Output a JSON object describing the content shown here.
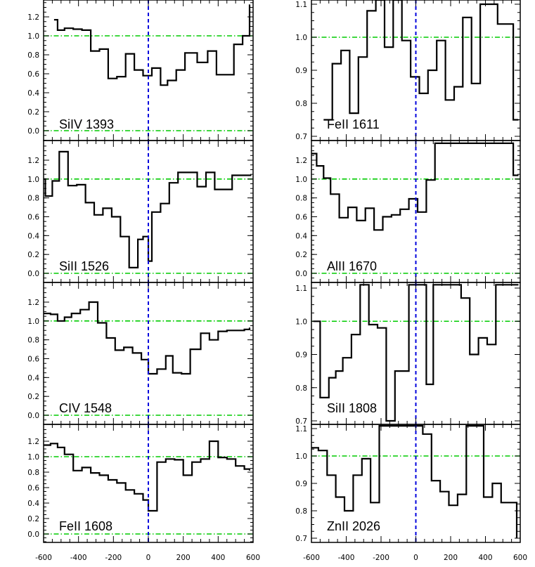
{
  "chart_data": [
    {
      "type": "line",
      "label": "SiIV 1393",
      "ylim": [
        -0.1,
        1.38
      ],
      "yticks": [
        0.0,
        0.2,
        0.4,
        0.6,
        0.8,
        1.0,
        1.2
      ],
      "ytick_labels": [
        "0.0",
        "0.2",
        "0.4",
        "0.6",
        "0.8",
        "1.0",
        "1.2"
      ],
      "x": [
        -540,
        -520,
        -480,
        -430,
        -380,
        -330,
        -280,
        -230,
        -180,
        -130,
        -80,
        -30,
        20,
        70,
        110,
        160,
        210,
        280,
        340,
        390,
        440,
        490,
        540,
        580
      ],
      "y": [
        1.17,
        1.06,
        1.08,
        1.07,
        1.06,
        0.84,
        0.86,
        0.55,
        0.57,
        0.81,
        0.64,
        0.58,
        0.66,
        0.48,
        0.53,
        0.64,
        0.82,
        0.72,
        0.84,
        0.59,
        0.59,
        0.91,
        1.0,
        1.33
      ]
    },
    {
      "type": "line",
      "label": "FeII 1611",
      "ylim": [
        0.7,
        1.11
      ],
      "yticks": [
        0.7,
        0.8,
        0.9,
        1.0,
        1.1
      ],
      "ytick_labels": [
        "0.7",
        "0.8",
        "0.9",
        "1.0",
        "1.1"
      ],
      "x": [
        -530,
        -480,
        -430,
        -380,
        -330,
        -280,
        -230,
        -180,
        -130,
        -80,
        -30,
        20,
        70,
        120,
        170,
        220,
        270,
        320,
        370,
        420,
        470,
        520,
        560,
        590
      ],
      "y": [
        0.75,
        0.92,
        0.96,
        0.77,
        0.94,
        1.08,
        1.2,
        0.97,
        1.18,
        0.99,
        0.88,
        0.83,
        0.9,
        0.99,
        0.81,
        0.85,
        1.06,
        0.86,
        1.1,
        1.1,
        1.04,
        1.04,
        0.75,
        0.75
      ]
    },
    {
      "type": "line",
      "label": "SiII 1526",
      "ylim": [
        -0.1,
        1.38
      ],
      "yticks": [
        0.0,
        0.2,
        0.4,
        0.6,
        0.8,
        1.0,
        1.2
      ],
      "ytick_labels": [
        "0.0",
        "0.2",
        "0.4",
        "0.6",
        "0.8",
        "1.0",
        "1.2"
      ],
      "x": [
        -600,
        -590,
        -550,
        -510,
        -460,
        -410,
        -360,
        -310,
        -260,
        -210,
        -160,
        -110,
        -60,
        -30,
        0,
        20,
        70,
        120,
        170,
        220,
        280,
        330,
        380,
        430,
        480,
        520,
        560,
        590
      ],
      "y": [
        1.0,
        0.82,
        0.98,
        1.29,
        0.93,
        0.94,
        0.75,
        0.62,
        0.69,
        0.6,
        0.39,
        0.06,
        0.36,
        0.39,
        0.13,
        0.65,
        0.74,
        0.96,
        1.07,
        1.07,
        0.92,
        1.07,
        0.89,
        0.89,
        1.04,
        1.04,
        1.04,
        1.04
      ]
    },
    {
      "type": "line",
      "label": "AlII 1670",
      "ylim": [
        -0.1,
        1.38
      ],
      "yticks": [
        0.0,
        0.2,
        0.4,
        0.6,
        0.8,
        1.0,
        1.2
      ],
      "ytick_labels": [
        "0.0",
        "0.2",
        "0.4",
        "0.6",
        "0.8",
        "1.0",
        "1.2"
      ],
      "x": [
        -600,
        -570,
        -530,
        -490,
        -440,
        -390,
        -340,
        -290,
        -240,
        -190,
        -140,
        -90,
        -40,
        10,
        60,
        110,
        160,
        210,
        260,
        310,
        360,
        410,
        460,
        510,
        560,
        590
      ],
      "y": [
        1.27,
        1.14,
        1.01,
        0.84,
        0.59,
        0.7,
        0.56,
        0.69,
        0.46,
        0.6,
        0.62,
        0.68,
        0.79,
        0.65,
        0.99,
        1.38,
        1.38,
        1.38,
        1.38,
        1.38,
        1.38,
        1.38,
        1.38,
        1.38,
        1.04,
        1.04
      ]
    },
    {
      "type": "line",
      "label": "CIV 1548",
      "ylim": [
        -0.1,
        1.38
      ],
      "yticks": [
        0.0,
        0.2,
        0.4,
        0.6,
        0.8,
        1.0,
        1.2
      ],
      "ytick_labels": [
        "0.0",
        "0.2",
        "0.4",
        "0.6",
        "0.8",
        "1.0",
        "1.2"
      ],
      "x": [
        -600,
        -560,
        -520,
        -480,
        -440,
        -390,
        -340,
        -290,
        -240,
        -190,
        -140,
        -90,
        -40,
        0,
        50,
        100,
        140,
        190,
        240,
        300,
        350,
        400,
        450,
        500,
        550,
        580
      ],
      "y": [
        1.08,
        1.07,
        1.0,
        1.04,
        1.08,
        1.12,
        1.2,
        0.98,
        0.82,
        0.69,
        0.72,
        0.66,
        0.59,
        0.44,
        0.49,
        0.63,
        0.45,
        0.44,
        0.7,
        0.87,
        0.8,
        0.89,
        0.9,
        0.9,
        0.91,
        0.93
      ]
    },
    {
      "type": "line",
      "label": "SiII 1808",
      "ylim": [
        0.7,
        1.11
      ],
      "yticks": [
        0.7,
        0.8,
        0.9,
        1.0,
        1.1
      ],
      "ytick_labels": [
        "0.7",
        "0.8",
        "0.9",
        "1.0",
        "1.1"
      ],
      "x": [
        -590,
        -550,
        -500,
        -460,
        -420,
        -370,
        -320,
        -270,
        -220,
        -170,
        -120,
        -80,
        -40,
        10,
        60,
        100,
        160,
        200,
        260,
        310,
        360,
        410,
        460,
        510,
        560,
        590
      ],
      "y": [
        1.0,
        0.77,
        0.83,
        0.85,
        0.89,
        0.96,
        1.11,
        0.99,
        0.98,
        0.7,
        0.85,
        0.85,
        1.11,
        1.11,
        0.81,
        1.11,
        1.11,
        1.11,
        1.07,
        0.9,
        0.95,
        0.93,
        1.11,
        1.11,
        1.11,
        1.11
      ]
    },
    {
      "type": "line",
      "label": "FeII 1608",
      "ylim": [
        -0.1,
        1.38
      ],
      "yticks": [
        0.0,
        0.2,
        0.4,
        0.6,
        0.8,
        1.0,
        1.2
      ],
      "ytick_labels": [
        "0.0",
        "0.2",
        "0.4",
        "0.6",
        "0.8",
        "1.0",
        "1.2"
      ],
      "x": [
        -600,
        -560,
        -520,
        -480,
        -430,
        -380,
        -330,
        -280,
        -230,
        -180,
        -130,
        -80,
        -30,
        0,
        50,
        100,
        150,
        200,
        250,
        300,
        350,
        400,
        450,
        500,
        550,
        580
      ],
      "y": [
        1.15,
        1.17,
        1.12,
        1.03,
        0.82,
        0.86,
        0.79,
        0.76,
        0.7,
        0.66,
        0.57,
        0.52,
        0.44,
        0.3,
        0.93,
        0.97,
        0.96,
        0.76,
        0.93,
        0.97,
        1.2,
        0.99,
        0.97,
        0.88,
        0.84,
        0.82
      ]
    },
    {
      "type": "line",
      "label": "ZnII 2026",
      "ylim": [
        0.7,
        1.11
      ],
      "yticks": [
        0.7,
        0.8,
        0.9,
        1.0,
        1.1
      ],
      "ytick_labels": [
        "0.7",
        "0.8",
        "0.9",
        "1.0",
        "1.1"
      ],
      "x": [
        -600,
        -560,
        -510,
        -460,
        -410,
        -360,
        -310,
        -260,
        -210,
        -160,
        -110,
        -60,
        -10,
        40,
        90,
        140,
        190,
        240,
        290,
        340,
        390,
        440,
        490,
        540,
        580
      ],
      "y": [
        1.03,
        1.02,
        0.93,
        0.85,
        0.8,
        0.93,
        0.99,
        0.83,
        1.11,
        1.11,
        1.11,
        1.11,
        1.11,
        1.08,
        0.91,
        0.87,
        0.82,
        0.86,
        1.11,
        1.11,
        0.85,
        0.9,
        0.83,
        0.83,
        0.7
      ]
    }
  ],
  "x_axis": {
    "xlim": [
      -600,
      600
    ],
    "ticks": [
      -600,
      -400,
      -200,
      0,
      200,
      400,
      600
    ],
    "tick_labels": [
      "-600",
      "-400",
      "-200",
      "0",
      "200",
      "400",
      "600"
    ]
  },
  "reference_level": 1.0,
  "zero_level": 0.0
}
